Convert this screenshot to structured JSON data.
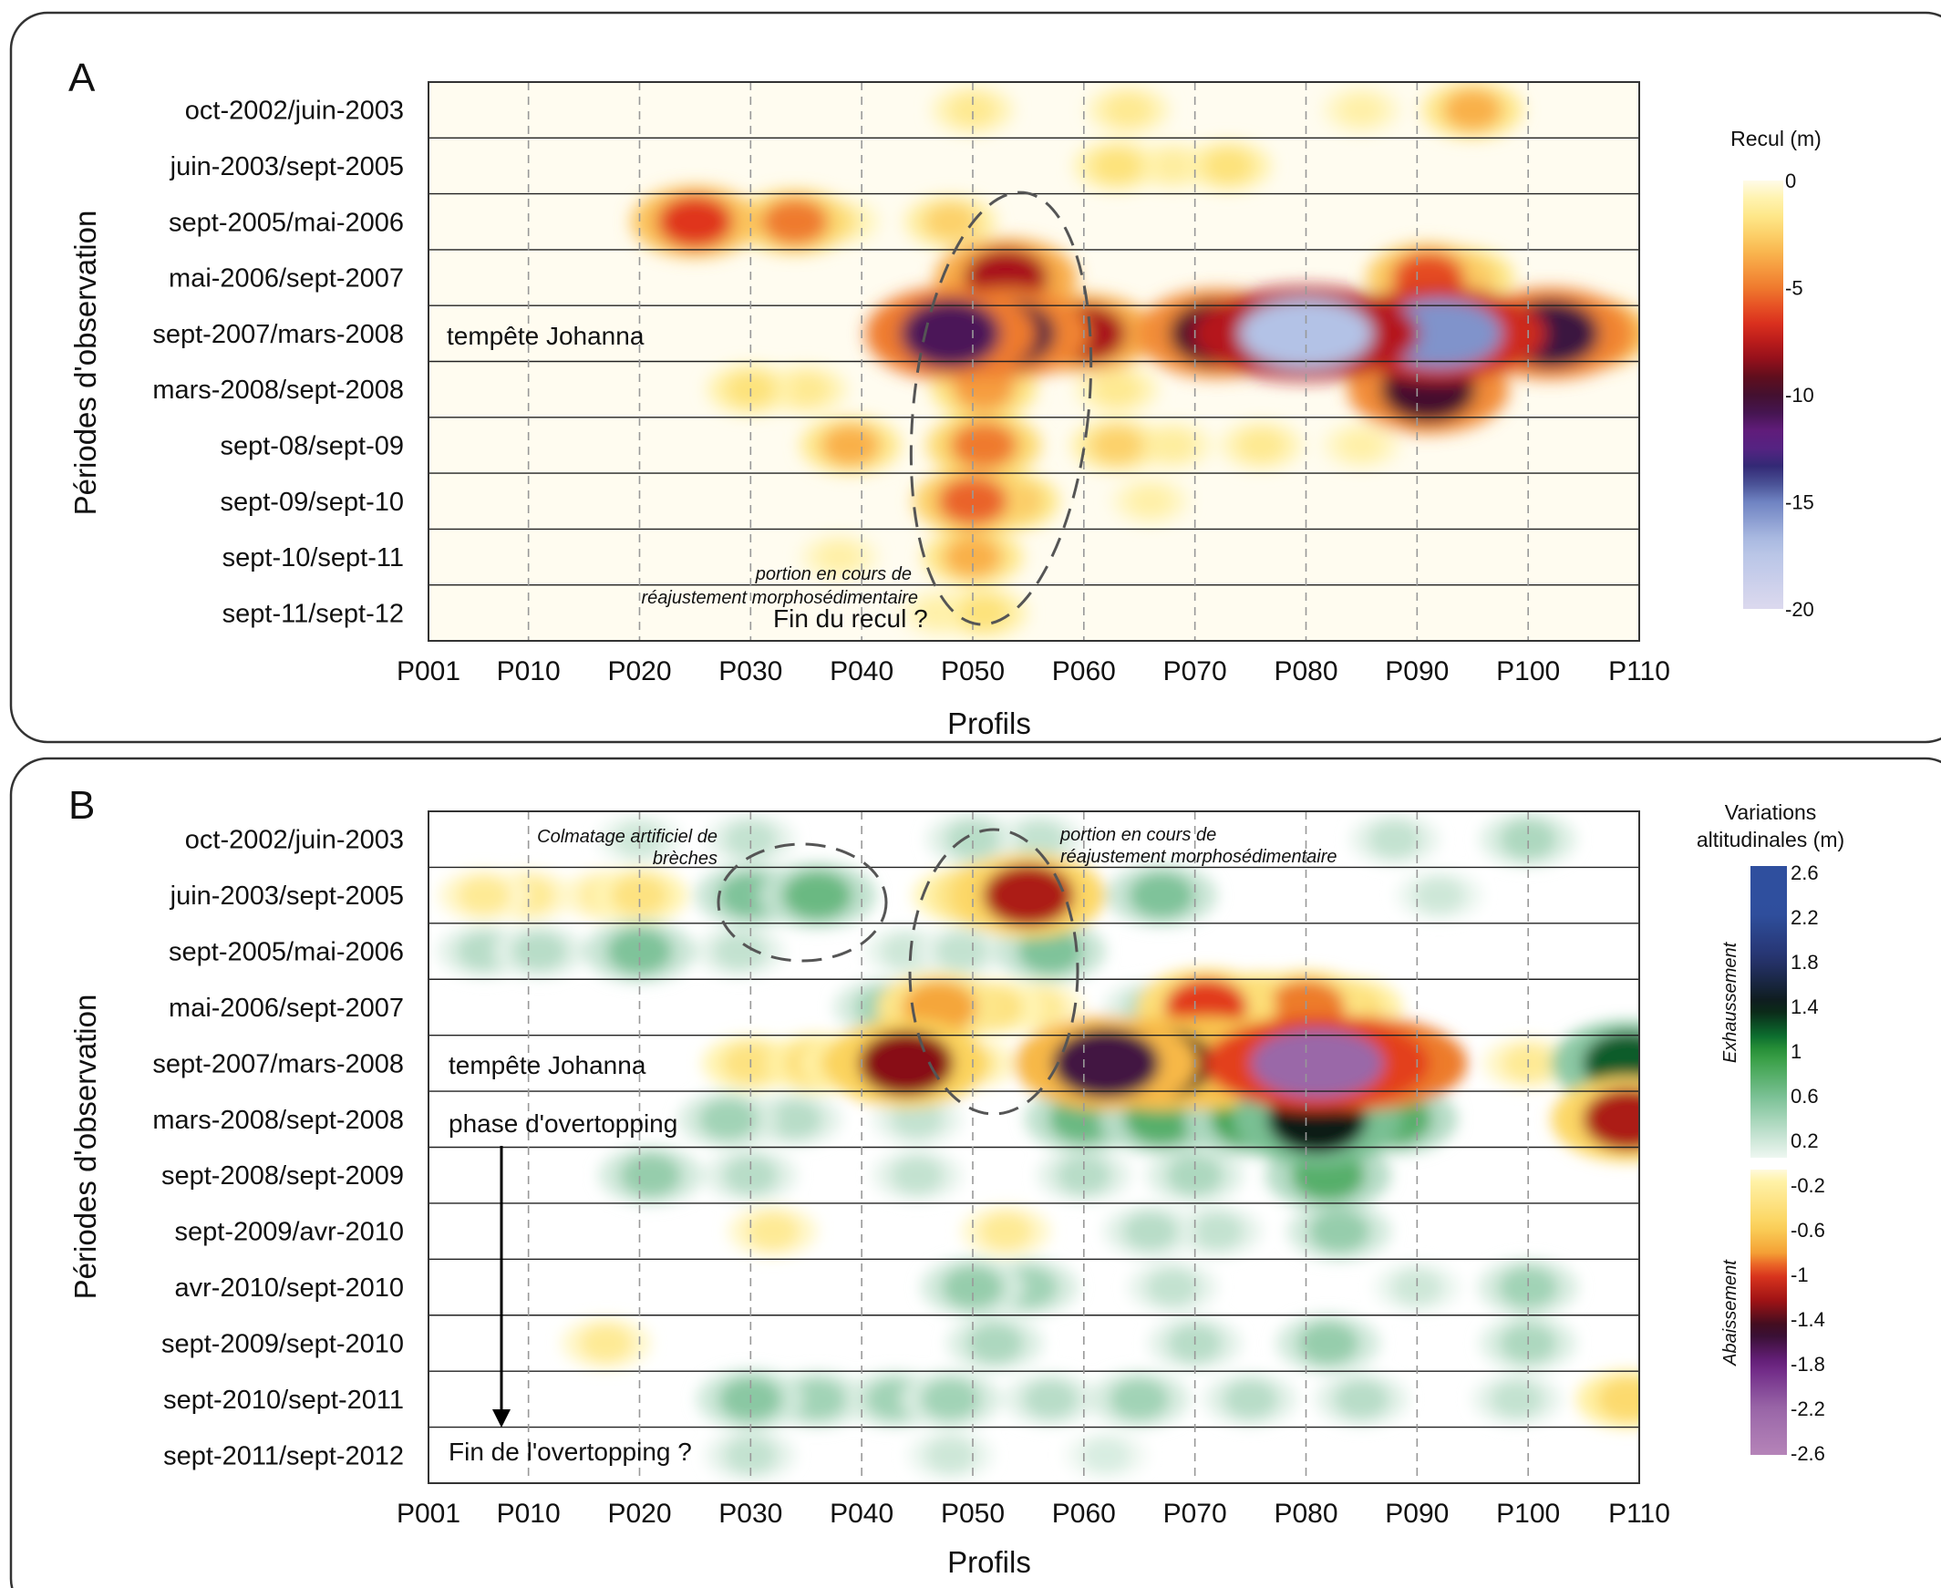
{
  "profile_labels": [
    "P001",
    "P010",
    "P020",
    "P030",
    "P040",
    "P050",
    "P060",
    "P070",
    "P080",
    "P090",
    "P100",
    "P110"
  ],
  "profile_positions": [
    1,
    10,
    20,
    30,
    40,
    50,
    60,
    70,
    80,
    90,
    100,
    110
  ],
  "chart_data": [
    {
      "panel": "A",
      "type": "heatmap",
      "xlabel": "Profils",
      "ylabel": "Périodes d'observation",
      "xlim": [
        1,
        110
      ],
      "periods": [
        "oct-2002/juin-2003",
        "juin-2003/sept-2005",
        "sept-2005/mai-2006",
        "mai-2006/sept-2007",
        "sept-2007/mars-2008",
        "mars-2008/sept-2008",
        "sept-08/sept-09",
        "sept-09/sept-10",
        "sept-10/sept-11",
        "sept-11/sept-12"
      ],
      "colorbar": {
        "title": "Recul (m)",
        "ticks": [
          "0",
          "-5",
          "-10",
          "-15",
          "-20"
        ],
        "range": [
          -20,
          0
        ],
        "stops": [
          {
            "v": 0,
            "color": "#fffbe8"
          },
          {
            "v": -0.8,
            "color": "#fff3b0"
          },
          {
            "v": -2,
            "color": "#fde27a"
          },
          {
            "v": -3.5,
            "color": "#f9b04a"
          },
          {
            "v": -5,
            "color": "#ef7a2e"
          },
          {
            "v": -6.5,
            "color": "#e0341e"
          },
          {
            "v": -8,
            "color": "#a8101a"
          },
          {
            "v": -9.5,
            "color": "#4c0e1e"
          },
          {
            "v": -10.5,
            "color": "#3b1240"
          },
          {
            "v": -12,
            "color": "#6a1f8a"
          },
          {
            "v": -13.5,
            "color": "#2c2a72"
          },
          {
            "v": -15,
            "color": "#6f83c2"
          },
          {
            "v": -17,
            "color": "#b3c2e6"
          },
          {
            "v": -20,
            "color": "#dcd9ee"
          }
        ]
      },
      "blobs": [
        {
          "x": 95,
          "row": 0,
          "value": -3.5
        },
        {
          "x": 50,
          "row": 0,
          "value": -1.5
        },
        {
          "x": 64,
          "row": 0,
          "value": -1.5
        },
        {
          "x": 85,
          "row": 0,
          "value": -1
        },
        {
          "x": 63,
          "row": 1,
          "value": -2
        },
        {
          "x": 73,
          "row": 1,
          "value": -2
        },
        {
          "x": 68,
          "row": 1,
          "value": -1.2
        },
        {
          "x": 25,
          "row": 2,
          "value": -6.5
        },
        {
          "x": 34,
          "row": 2,
          "value": -5
        },
        {
          "x": 29,
          "row": 2,
          "value": -1.5
        },
        {
          "x": 38,
          "row": 2,
          "value": -1.2
        },
        {
          "x": 48,
          "row": 2,
          "value": -2.5
        },
        {
          "x": 53,
          "row": 3,
          "value": -8
        },
        {
          "x": 91,
          "row": 3,
          "value": -6
        },
        {
          "x": 94,
          "row": 3,
          "value": -4
        },
        {
          "x": 48,
          "row": 4,
          "value": -11
        },
        {
          "x": 53,
          "row": 4,
          "value": -10.5
        },
        {
          "x": 60,
          "row": 4,
          "value": -8
        },
        {
          "x": 72,
          "row": 4,
          "value": -10
        },
        {
          "x": 80,
          "row": 4,
          "value": -17
        },
        {
          "x": 92,
          "row": 4,
          "value": -15.5
        },
        {
          "x": 98,
          "row": 4,
          "value": -7
        },
        {
          "x": 102,
          "row": 4,
          "value": -10.5
        },
        {
          "x": 105,
          "row": 4,
          "value": -7
        },
        {
          "x": 30,
          "row": 5,
          "value": -2
        },
        {
          "x": 35,
          "row": 5,
          "value": -1.5
        },
        {
          "x": 51,
          "row": 5,
          "value": -4
        },
        {
          "x": 91,
          "row": 5,
          "value": -10
        },
        {
          "x": 63,
          "row": 5,
          "value": -1.5
        },
        {
          "x": 39,
          "row": 6,
          "value": -3.5
        },
        {
          "x": 51,
          "row": 6,
          "value": -5
        },
        {
          "x": 63,
          "row": 6,
          "value": -2.5
        },
        {
          "x": 68,
          "row": 6,
          "value": -1.2
        },
        {
          "x": 76,
          "row": 6,
          "value": -1.5
        },
        {
          "x": 85,
          "row": 6,
          "value": -1
        },
        {
          "x": 50,
          "row": 7,
          "value": -5.5
        },
        {
          "x": 53,
          "row": 7,
          "value": -4
        },
        {
          "x": 66,
          "row": 7,
          "value": -1
        },
        {
          "x": 50,
          "row": 8,
          "value": -3.5
        },
        {
          "x": 38,
          "row": 8,
          "value": -1
        },
        {
          "x": 51,
          "row": 9,
          "value": -2
        },
        {
          "x": 47,
          "row": 9,
          "value": -1
        }
      ]
    },
    {
      "panel": "B",
      "type": "heatmap",
      "xlabel": "Profils",
      "ylabel": "Périodes d'observation",
      "xlim": [
        1,
        110
      ],
      "periods": [
        "oct-2002/juin-2003",
        "juin-2003/sept-2005",
        "sept-2005/mai-2006",
        "mai-2006/sept-2007",
        "sept-2007/mars-2008",
        "mars-2008/sept-2008",
        "sept-2008/sept-2009",
        "sept-2009/avr-2010",
        "avr-2010/sept-2010",
        "sept-2009/sept-2010",
        "sept-2010/sept-2011",
        "sept-2011/sept-2012"
      ],
      "colorbar": {
        "title_lines": [
          "Variations",
          "altitudinales (m)"
        ],
        "ticks_positive": [
          "2.6",
          "2.2",
          "1.8",
          "1.4",
          "1",
          "0.6",
          "0.2"
        ],
        "ticks_negative": [
          "-0.2",
          "-0.6",
          "-1",
          "-1.4",
          "-1.8",
          "-2.2",
          "-2.6"
        ],
        "label_positive": "Exhaussement",
        "label_negative": "Abaissement",
        "range": [
          -2.6,
          2.6
        ],
        "stops": [
          {
            "v": 2.6,
            "color": "#2f4f9e"
          },
          {
            "v": 2.2,
            "color": "#2f4f9e"
          },
          {
            "v": 1.8,
            "color": "#26336e"
          },
          {
            "v": 1.4,
            "color": "#0b1a14"
          },
          {
            "v": 1.15,
            "color": "#0b6b2e"
          },
          {
            "v": 1,
            "color": "#2f9a3a"
          },
          {
            "v": 0.6,
            "color": "#7fc39a"
          },
          {
            "v": 0.35,
            "color": "#b8ddc8"
          },
          {
            "v": 0.1,
            "color": "#eef7f1"
          },
          {
            "v": 0,
            "color": "#ffffff"
          },
          {
            "v": -0.1,
            "color": "#fffadd"
          },
          {
            "v": -0.2,
            "color": "#fff2a8"
          },
          {
            "v": -0.6,
            "color": "#fbd25a"
          },
          {
            "v": -0.85,
            "color": "#f39b32"
          },
          {
            "v": -1,
            "color": "#e23a1e"
          },
          {
            "v": -1.25,
            "color": "#9e1215"
          },
          {
            "v": -1.5,
            "color": "#2e0c22"
          },
          {
            "v": -1.8,
            "color": "#6a2182"
          },
          {
            "v": -2.2,
            "color": "#9a67a8"
          },
          {
            "v": -2.6,
            "color": "#b584b8"
          }
        ]
      },
      "blobs": [
        {
          "x": 50,
          "row": 0,
          "value": 0.35
        },
        {
          "x": 56,
          "row": 0,
          "value": 0.3
        },
        {
          "x": 100,
          "row": 0,
          "value": 0.4
        },
        {
          "x": 88,
          "row": 0,
          "value": 0.3
        },
        {
          "x": 30,
          "row": 0,
          "value": 0.3
        },
        {
          "x": 20,
          "row": 0,
          "value": 0.25
        },
        {
          "x": 30,
          "row": 1,
          "value": 0.6
        },
        {
          "x": 36,
          "row": 1,
          "value": 0.7
        },
        {
          "x": 52,
          "row": 1,
          "value": -0.8
        },
        {
          "x": 55,
          "row": 1,
          "value": -1.2
        },
        {
          "x": 49,
          "row": 1,
          "value": -0.4
        },
        {
          "x": 20,
          "row": 1,
          "value": -0.4
        },
        {
          "x": 17,
          "row": 1,
          "value": -0.3
        },
        {
          "x": 10,
          "row": 1,
          "value": -0.3
        },
        {
          "x": 6,
          "row": 1,
          "value": -0.3
        },
        {
          "x": 67,
          "row": 1,
          "value": 0.6
        },
        {
          "x": 92,
          "row": 1,
          "value": 0.25
        },
        {
          "x": 20,
          "row": 2,
          "value": 0.6
        },
        {
          "x": 6,
          "row": 2,
          "value": 0.35
        },
        {
          "x": 11,
          "row": 2,
          "value": 0.35
        },
        {
          "x": 29,
          "row": 2,
          "value": 0.3
        },
        {
          "x": 57,
          "row": 2,
          "value": 0.6
        },
        {
          "x": 49,
          "row": 2,
          "value": 0.3
        },
        {
          "x": 44,
          "row": 2,
          "value": 0.25
        },
        {
          "x": 42,
          "row": 3,
          "value": 0.45
        },
        {
          "x": 47,
          "row": 3,
          "value": -0.8
        },
        {
          "x": 52,
          "row": 3,
          "value": -0.4
        },
        {
          "x": 56,
          "row": 3,
          "value": -0.3
        },
        {
          "x": 66,
          "row": 3,
          "value": 0.35
        },
        {
          "x": 71,
          "row": 3,
          "value": -1
        },
        {
          "x": 76,
          "row": 3,
          "value": -0.8
        },
        {
          "x": 80,
          "row": 3,
          "value": -0.9
        },
        {
          "x": 84,
          "row": 3,
          "value": -0.5
        },
        {
          "x": 30,
          "row": 4,
          "value": -0.4
        },
        {
          "x": 36,
          "row": 4,
          "value": -0.5
        },
        {
          "x": 39,
          "row": 4,
          "value": -0.5
        },
        {
          "x": 44,
          "row": 4,
          "value": -1.3
        },
        {
          "x": 50,
          "row": 4,
          "value": -0.3
        },
        {
          "x": 62,
          "row": 4,
          "value": -1.6
        },
        {
          "x": 67,
          "row": 4,
          "value": -1.5
        },
        {
          "x": 71,
          "row": 4,
          "value": -1.4
        },
        {
          "x": 76,
          "row": 4,
          "value": -1.4
        },
        {
          "x": 81,
          "row": 4,
          "value": -2.2
        },
        {
          "x": 85,
          "row": 4,
          "value": -2
        },
        {
          "x": 100,
          "row": 4,
          "value": -0.3
        },
        {
          "x": 109,
          "row": 4,
          "value": 1.2
        },
        {
          "x": 28,
          "row": 5,
          "value": 0.45
        },
        {
          "x": 34,
          "row": 5,
          "value": 0.35
        },
        {
          "x": 45,
          "row": 5,
          "value": 0.3
        },
        {
          "x": 60,
          "row": 5,
          "value": 0.7
        },
        {
          "x": 67,
          "row": 5,
          "value": 0.8
        },
        {
          "x": 75,
          "row": 5,
          "value": 0.9
        },
        {
          "x": 81,
          "row": 5,
          "value": 1.4
        },
        {
          "x": 88,
          "row": 5,
          "value": 0.8
        },
        {
          "x": 109,
          "row": 5,
          "value": -1.2
        },
        {
          "x": 21,
          "row": 6,
          "value": 0.5
        },
        {
          "x": 30,
          "row": 6,
          "value": 0.35
        },
        {
          "x": 45,
          "row": 6,
          "value": 0.3
        },
        {
          "x": 60,
          "row": 6,
          "value": 0.35
        },
        {
          "x": 70,
          "row": 6,
          "value": 0.4
        },
        {
          "x": 82,
          "row": 6,
          "value": 0.8
        },
        {
          "x": 32,
          "row": 7,
          "value": -0.3
        },
        {
          "x": 53,
          "row": 7,
          "value": -0.3
        },
        {
          "x": 66,
          "row": 7,
          "value": 0.35
        },
        {
          "x": 72,
          "row": 7,
          "value": 0.3
        },
        {
          "x": 83,
          "row": 7,
          "value": 0.5
        },
        {
          "x": 50,
          "row": 8,
          "value": 0.5
        },
        {
          "x": 55,
          "row": 8,
          "value": 0.45
        },
        {
          "x": 68,
          "row": 8,
          "value": 0.3
        },
        {
          "x": 100,
          "row": 8,
          "value": 0.45
        },
        {
          "x": 90,
          "row": 8,
          "value": 0.25
        },
        {
          "x": 52,
          "row": 9,
          "value": 0.4
        },
        {
          "x": 70,
          "row": 9,
          "value": 0.35
        },
        {
          "x": 82,
          "row": 9,
          "value": 0.5
        },
        {
          "x": 100,
          "row": 9,
          "value": 0.4
        },
        {
          "x": 17,
          "row": 9,
          "value": -0.3
        },
        {
          "x": 30,
          "row": 10,
          "value": 0.55
        },
        {
          "x": 36,
          "row": 10,
          "value": 0.45
        },
        {
          "x": 43,
          "row": 10,
          "value": 0.45
        },
        {
          "x": 48,
          "row": 10,
          "value": 0.45
        },
        {
          "x": 57,
          "row": 10,
          "value": 0.35
        },
        {
          "x": 65,
          "row": 10,
          "value": 0.45
        },
        {
          "x": 75,
          "row": 10,
          "value": 0.35
        },
        {
          "x": 85,
          "row": 10,
          "value": 0.35
        },
        {
          "x": 99,
          "row": 10,
          "value": 0.3
        },
        {
          "x": 109,
          "row": 10,
          "value": -0.5
        },
        {
          "x": 30,
          "row": 11,
          "value": 0.3
        },
        {
          "x": 48,
          "row": 11,
          "value": 0.25
        },
        {
          "x": 62,
          "row": 11,
          "value": 0.2
        }
      ]
    }
  ],
  "panelA": {
    "letter": "A",
    "annotations": {
      "johanna": "tempête Johanna",
      "portion_line1": "portion en cours de",
      "portion_line2": "réajustement morphosédimentaire",
      "fin_recul": "Fin du recul ?"
    }
  },
  "panelB": {
    "letter": "B",
    "annotations": {
      "colmatage_line1": "Colmatage artificiel de",
      "colmatage_line2": "brèches",
      "portion_line1": "portion en cours de",
      "portion_line2": "réajustement morphosédimentaire",
      "johanna": "tempête Johanna",
      "overtopping": "phase d'overtopping",
      "fin_overtopping": "Fin de l'overtopping ?"
    }
  }
}
